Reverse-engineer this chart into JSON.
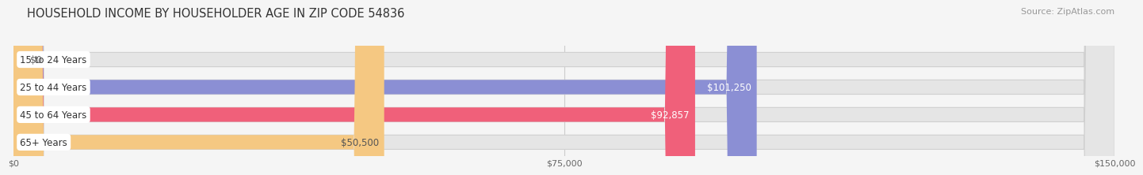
{
  "title": "HOUSEHOLD INCOME BY HOUSEHOLDER AGE IN ZIP CODE 54836",
  "source": "Source: ZipAtlas.com",
  "categories": [
    "15 to 24 Years",
    "25 to 44 Years",
    "45 to 64 Years",
    "65+ Years"
  ],
  "values": [
    0,
    101250,
    92857,
    50500
  ],
  "bar_colors": [
    "#7dd8d4",
    "#8b8fd4",
    "#f0607a",
    "#f5c882"
  ],
  "value_labels": [
    "$0",
    "$101,250",
    "$92,857",
    "$50,500"
  ],
  "value_label_colors": [
    "#555555",
    "#ffffff",
    "#ffffff",
    "#555555"
  ],
  "x_ticks": [
    0,
    75000,
    150000
  ],
  "x_tick_labels": [
    "$0",
    "$75,000",
    "$150,000"
  ],
  "xlim_data": [
    0,
    150000
  ],
  "bg_color": "#f5f5f5",
  "bar_bg_color": "#e5e5e5",
  "bar_bg_edge_color": "#d0d0d0",
  "title_fontsize": 10.5,
  "source_fontsize": 8,
  "bar_height": 0.52,
  "bar_gap": 0.48,
  "label_box_color": "#ffffff",
  "label_text_color": "#333333",
  "label_fontsize": 8.5,
  "value_fontsize": 8.5
}
